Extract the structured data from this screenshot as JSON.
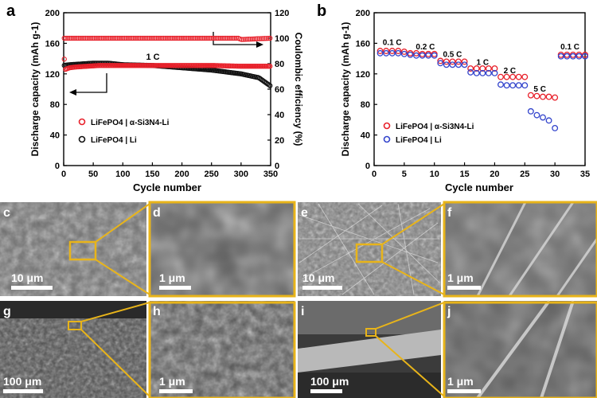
{
  "chart_data": [
    {
      "panel": "a",
      "type": "scatter",
      "xlabel": "Cycle number",
      "ylabel": "Discharge capacity (mAh g-1)",
      "y2label": "Coulombic efficiency (%)",
      "xlim": [
        0,
        350
      ],
      "ylim": [
        0,
        200
      ],
      "y2lim": [
        0,
        120
      ],
      "xticks": [
        0,
        50,
        100,
        150,
        200,
        250,
        300,
        350
      ],
      "yticks": [
        0,
        40,
        80,
        120,
        160,
        200
      ],
      "y2ticks": [
        0,
        20,
        40,
        60,
        80,
        100,
        120
      ],
      "annotation": "1 C",
      "series": [
        {
          "name": "LiFePO4 | α-Si3N4-Li",
          "metric": "capacity",
          "color": "#e8202a",
          "x": [
            0,
            3,
            10,
            20,
            40,
            60,
            80,
            100,
            120,
            150,
            200,
            250,
            300,
            350
          ],
          "values": [
            146,
            126,
            128,
            129,
            130,
            131,
            131,
            131,
            131,
            131,
            131,
            131,
            130,
            130
          ]
        },
        {
          "name": "LiFePO4 | Li",
          "metric": "capacity",
          "color": "#111111",
          "x": [
            0,
            10,
            30,
            50,
            75,
            100,
            150,
            200,
            250,
            300,
            330,
            350
          ],
          "values": [
            131,
            132,
            133,
            134,
            134,
            132,
            131,
            128,
            125,
            120,
            115,
            104
          ]
        },
        {
          "name": "LiFePO4 | α-Si3N4-Li",
          "metric": "coulombic efficiency",
          "color": "#e8202a",
          "x": [
            0,
            50,
            100,
            150,
            200,
            250,
            295,
            300,
            350
          ],
          "values": [
            100,
            100,
            100,
            100,
            100,
            100,
            100,
            99,
            100
          ]
        }
      ],
      "legend": [
        {
          "label": "LiFePO4 | α-Si3N4-Li",
          "color": "#e8202a"
        },
        {
          "label": "LiFePO4 | Li",
          "color": "#111111"
        }
      ]
    },
    {
      "panel": "b",
      "type": "scatter",
      "xlabel": "Cycle number",
      "ylabel": "Discharge capacity (mAh g-1)",
      "xlim": [
        0,
        35
      ],
      "ylim": [
        0,
        200
      ],
      "xticks": [
        0,
        5,
        10,
        15,
        20,
        25,
        30,
        35
      ],
      "yticks": [
        0,
        40,
        80,
        120,
        160,
        200
      ],
      "rate_labels": [
        "0.1 C",
        "0.2 C",
        "0.5 C",
        "1 C",
        "2 C",
        "5 C",
        "0.1 C"
      ],
      "series": [
        {
          "name": "LiFePO4 | α-Si3N4-Li",
          "color": "#e8202a",
          "x": [
            1,
            2,
            3,
            4,
            5,
            6,
            7,
            8,
            9,
            10,
            11,
            12,
            13,
            14,
            15,
            16,
            17,
            18,
            19,
            20,
            21,
            22,
            23,
            24,
            25,
            26,
            27,
            28,
            29,
            30,
            31,
            32,
            33,
            34,
            35
          ],
          "values": [
            150,
            150,
            150,
            150,
            149,
            147,
            147,
            146,
            146,
            146,
            137,
            136,
            136,
            136,
            136,
            127,
            127,
            127,
            127,
            127,
            116,
            116,
            116,
            116,
            116,
            92,
            91,
            90,
            90,
            89,
            145,
            145,
            145,
            145,
            145
          ]
        },
        {
          "name": "LiFePO4 | Li",
          "color": "#3344cc",
          "x": [
            1,
            2,
            3,
            4,
            5,
            6,
            7,
            8,
            9,
            10,
            11,
            12,
            13,
            14,
            15,
            16,
            17,
            18,
            19,
            20,
            21,
            22,
            23,
            24,
            25,
            26,
            27,
            28,
            29,
            30,
            31,
            32,
            33,
            34,
            35
          ],
          "values": [
            147,
            147,
            147,
            147,
            146,
            145,
            144,
            144,
            144,
            144,
            134,
            132,
            132,
            132,
            132,
            122,
            121,
            121,
            121,
            121,
            106,
            105,
            105,
            105,
            105,
            71,
            66,
            63,
            59,
            49,
            143,
            143,
            143,
            143,
            143
          ]
        }
      ],
      "legend": [
        {
          "label": "LiFePO4 | α-Si3N4-Li",
          "color": "#e8202a"
        },
        {
          "label": "LiFePO4 | Li",
          "color": "#3344cc"
        }
      ]
    }
  ],
  "sem_panels": [
    {
      "letter": "c",
      "scale": "10 μm"
    },
    {
      "letter": "d",
      "scale": "1 μm"
    },
    {
      "letter": "e",
      "scale": "10 μm"
    },
    {
      "letter": "f",
      "scale": "1 μm"
    },
    {
      "letter": "g",
      "scale": "100 μm"
    },
    {
      "letter": "h",
      "scale": "1 μm"
    },
    {
      "letter": "i",
      "scale": "100 μm"
    },
    {
      "letter": "j",
      "scale": "1 μm"
    }
  ],
  "chart_letters": {
    "a": "a",
    "b": "b"
  }
}
